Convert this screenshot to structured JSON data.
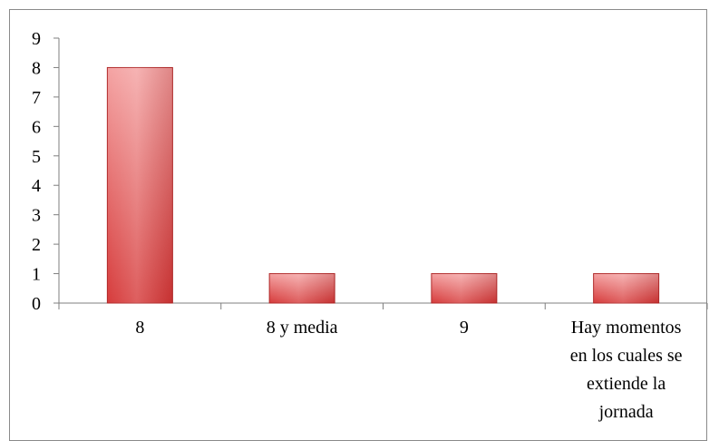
{
  "chart_data": {
    "type": "bar",
    "categories": [
      "8",
      "8 y media",
      "9",
      "Hay momentos en los cuales se extiende la jornada"
    ],
    "category_label_lines": [
      [
        "8"
      ],
      [
        "8 y media"
      ],
      [
        "9"
      ],
      [
        "Hay momentos",
        "en los cuales se",
        "extiende la",
        "jornada"
      ]
    ],
    "values": [
      8,
      1,
      1,
      1
    ],
    "ylim": [
      0,
      9
    ],
    "yticks": [
      0,
      1,
      2,
      3,
      4,
      5,
      6,
      7,
      8,
      9
    ],
    "grid": false,
    "legend": "none",
    "bar_color_top": "#f4a3a3",
    "bar_color_bottom": "#d63b3b",
    "bar_stroke": "#b02a2a"
  }
}
